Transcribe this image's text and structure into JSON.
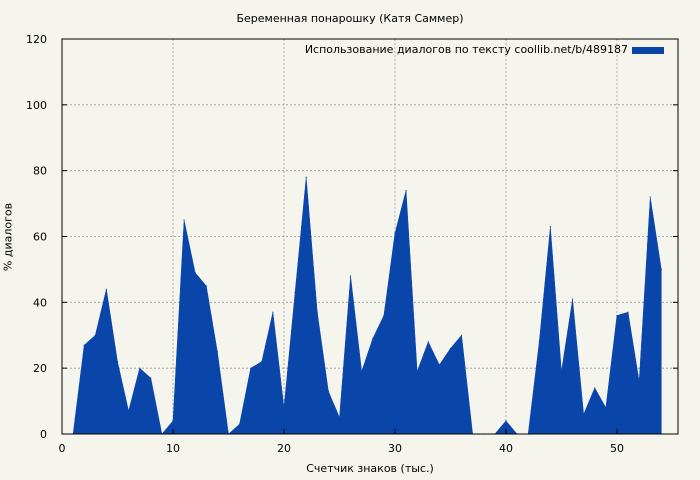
{
  "chart_data": {
    "type": "area",
    "title": "Беременная понарошку (Катя Саммер)",
    "xlabel": "Счетчик знаков (тыс.)",
    "ylabel": "% диалогов",
    "xlim": [
      0,
      55.5
    ],
    "ylim": [
      0,
      120
    ],
    "xticks": [
      0,
      10,
      20,
      30,
      40,
      50
    ],
    "yticks": [
      0,
      20,
      40,
      60,
      80,
      100,
      120
    ],
    "grid": true,
    "legend_position": "top-right",
    "color": "#0a46aa",
    "series": [
      {
        "name": "Использование диалогов по тексту  coollib.net/b/489187",
        "x": [
          1,
          2,
          3,
          4,
          5,
          6,
          7,
          8,
          9,
          10,
          11,
          12,
          13,
          14,
          15,
          16,
          17,
          18,
          19,
          20,
          21,
          22,
          23,
          24,
          25,
          26,
          27,
          28,
          29,
          30,
          31,
          32,
          33,
          34,
          35,
          36,
          37,
          38,
          39,
          40,
          41,
          42,
          43,
          44,
          45,
          46,
          47,
          48,
          49,
          50,
          51,
          52,
          53,
          54
        ],
        "values": [
          0,
          27,
          30,
          44,
          22,
          7,
          20,
          17,
          0,
          4,
          65,
          49,
          45,
          25,
          0,
          3,
          20,
          22,
          37,
          8,
          43,
          78,
          37,
          13,
          5,
          48,
          19,
          29,
          36,
          61,
          74,
          19,
          28,
          21,
          26,
          30,
          0,
          0,
          0,
          4,
          0,
          0,
          28,
          63,
          19,
          41,
          6,
          14,
          8,
          36,
          37,
          16,
          72,
          50
        ]
      }
    ]
  }
}
